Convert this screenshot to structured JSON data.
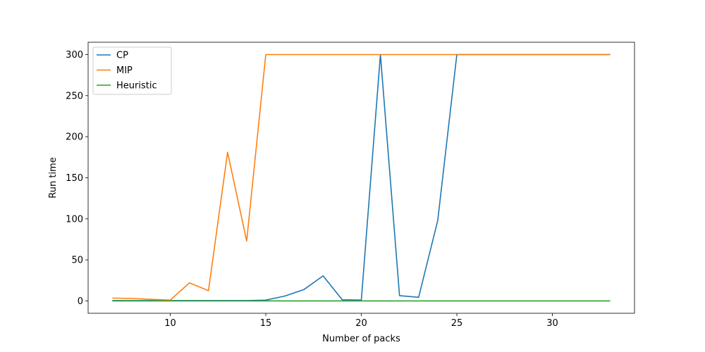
{
  "chart_data": {
    "type": "line",
    "title": "",
    "xlabel": "Number of packs",
    "ylabel": "Run time",
    "xlim": [
      5.7,
      34.3
    ],
    "ylim": [
      -15,
      315
    ],
    "xticks": [
      10,
      15,
      20,
      25,
      30
    ],
    "yticks": [
      0,
      50,
      100,
      150,
      200,
      250,
      300
    ],
    "grid": false,
    "legend": "top-left",
    "x": [
      7,
      8,
      9,
      10,
      11,
      12,
      13,
      14,
      15,
      16,
      17,
      18,
      19,
      20,
      21,
      22,
      23,
      24,
      25,
      26,
      27,
      28,
      29,
      30,
      31,
      32,
      33
    ],
    "series": [
      {
        "name": "CP",
        "color": "#1f77b4",
        "values": [
          0.5,
          0.5,
          0.5,
          0.5,
          0.5,
          0.5,
          0.5,
          0.5,
          1,
          6,
          14,
          30.5,
          1.5,
          1,
          300,
          6.5,
          4.5,
          98,
          300,
          300,
          300,
          300,
          300,
          300,
          300,
          300,
          300
        ]
      },
      {
        "name": "MIP",
        "color": "#ff7f0e",
        "values": [
          3.5,
          3,
          2,
          1,
          22,
          12.5,
          181,
          73,
          300,
          300,
          300,
          300,
          300,
          300,
          300,
          300,
          300,
          300,
          300,
          300,
          300,
          300,
          300,
          300,
          300,
          300,
          300
        ]
      },
      {
        "name": "Heuristic",
        "color": "#2ca02c",
        "values": [
          0.1,
          0.1,
          0.1,
          0.1,
          0.1,
          0.1,
          0.1,
          0.1,
          0.1,
          0.1,
          0.1,
          0.1,
          0.1,
          0.1,
          0.1,
          0.1,
          0.1,
          0.1,
          0.1,
          0.1,
          0.1,
          0.1,
          0.1,
          0.1,
          0.1,
          0.1,
          0.1
        ]
      }
    ]
  }
}
